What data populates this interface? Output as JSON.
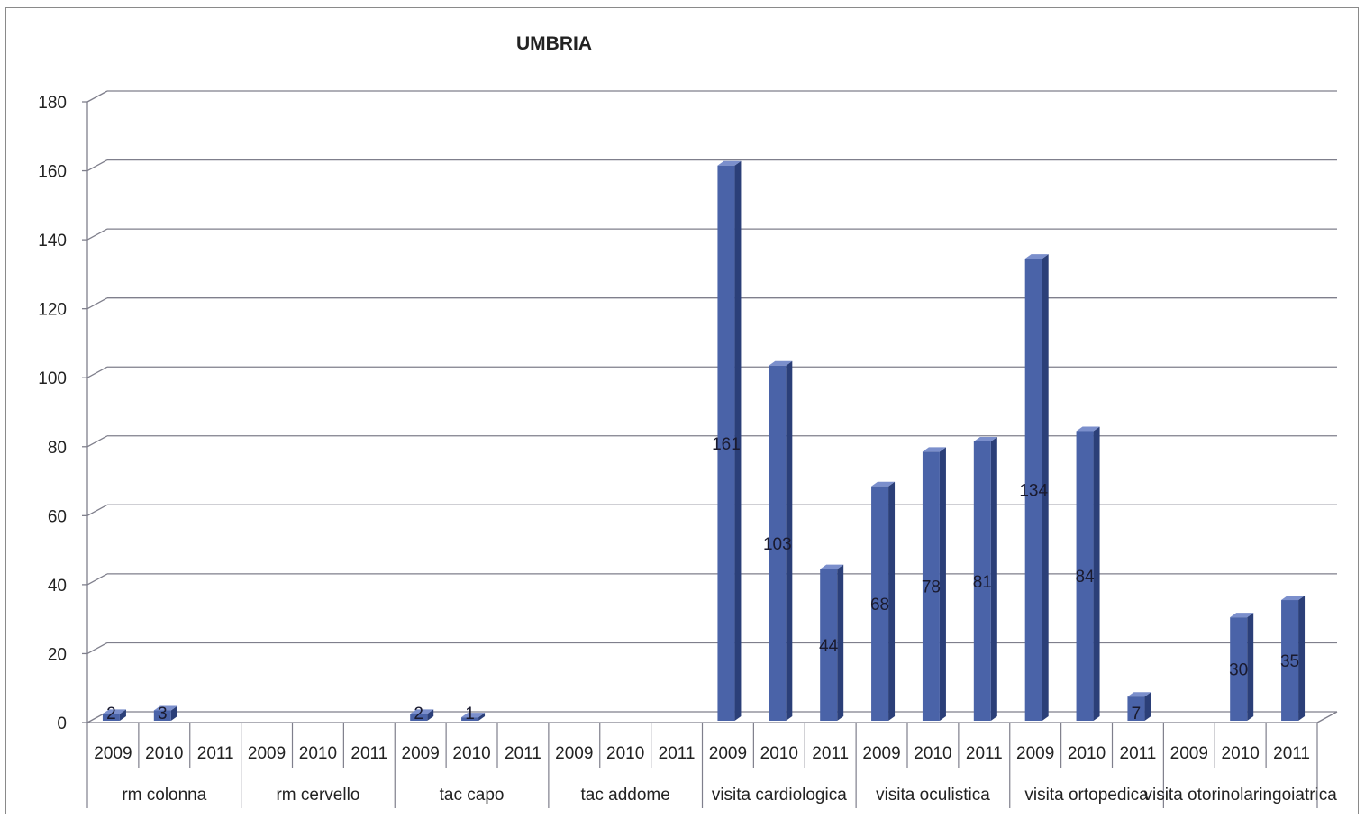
{
  "chart_data": {
    "type": "bar",
    "title": "UMBRIA",
    "xlabel": "",
    "ylabel": "",
    "ylim": [
      0,
      180
    ],
    "yticks": [
      0,
      20,
      40,
      60,
      80,
      100,
      120,
      140,
      160,
      180
    ],
    "grid": true,
    "legend": "none",
    "bar_color": "#4a63a8",
    "groups": [
      {
        "name": "rm colonna",
        "years": [
          "2009",
          "2010",
          "2011"
        ],
        "values": [
          2,
          3,
          null
        ],
        "labels": [
          "2",
          "3",
          ""
        ]
      },
      {
        "name": "rm cervello",
        "years": [
          "2009",
          "2010",
          "2011"
        ],
        "values": [
          null,
          null,
          null
        ],
        "labels": [
          "",
          "",
          ""
        ]
      },
      {
        "name": "tac capo",
        "years": [
          "2009",
          "2010",
          "2011"
        ],
        "values": [
          2,
          1,
          null
        ],
        "labels": [
          "2",
          "1",
          ""
        ]
      },
      {
        "name": "tac addome",
        "years": [
          "2009",
          "2010",
          "2011"
        ],
        "values": [
          null,
          null,
          null
        ],
        "labels": [
          "",
          "",
          ""
        ]
      },
      {
        "name": "visita cardiologica",
        "years": [
          "2009",
          "2010",
          "2011"
        ],
        "values": [
          161,
          103,
          44
        ],
        "labels": [
          "161",
          "103",
          "44"
        ]
      },
      {
        "name": "visita oculistica",
        "years": [
          "2009",
          "2010",
          "2011"
        ],
        "values": [
          68,
          78,
          81
        ],
        "labels": [
          "68",
          "78",
          "81"
        ]
      },
      {
        "name": "visita ortopedica",
        "years": [
          "2009",
          "2010",
          "2011"
        ],
        "values": [
          134,
          84,
          7
        ],
        "labels": [
          "134",
          "84",
          "7"
        ]
      },
      {
        "name": "visita otorinolaringoiatrica",
        "years": [
          "2009",
          "2010",
          "2011"
        ],
        "values": [
          null,
          30,
          35
        ],
        "labels": [
          "",
          "30",
          "35"
        ]
      }
    ]
  }
}
